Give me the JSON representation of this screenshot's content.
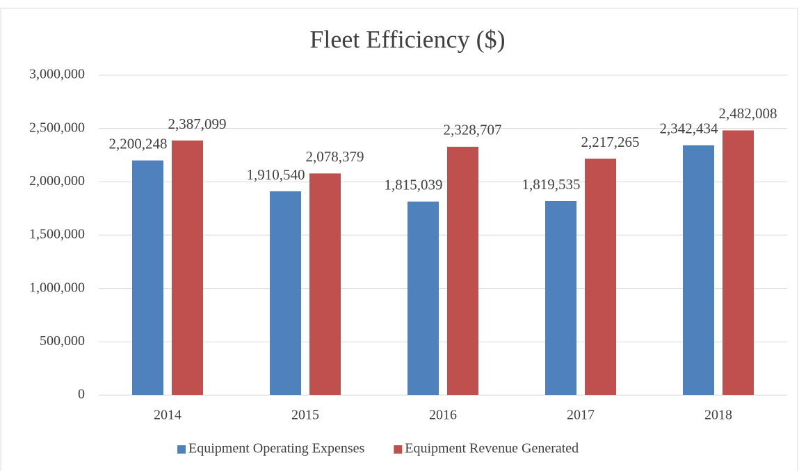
{
  "chart_data": {
    "type": "bar",
    "title": "Fleet Efficiency ($)",
    "categories": [
      "2014",
      "2015",
      "2016",
      "2017",
      "2018"
    ],
    "series": [
      {
        "name": "Equipment Operating Expenses",
        "color": "#4f81bd",
        "values": [
          2200248,
          1910540,
          1815039,
          1819535,
          2342434
        ],
        "value_labels": [
          "2,200,248",
          "1,910,540",
          "1,815,039",
          "1,819,535",
          "2,342,434"
        ]
      },
      {
        "name": "Equipment Revenue Generated",
        "color": "#c0504d",
        "values": [
          2387099,
          2078379,
          2328707,
          2217265,
          2482008
        ],
        "value_labels": [
          "2,387,099",
          "2,078,379",
          "2,328,707",
          "2,217,265",
          "2,482,008"
        ]
      }
    ],
    "ylim": [
      0,
      3000000
    ],
    "yticks": [
      0,
      {
        "value": 500000,
        "label": "500,000"
      },
      {
        "value": 1000000,
        "label": "1,000,000"
      },
      {
        "value": 1500000,
        "label": "1,500,000"
      },
      {
        "value": 2000000,
        "label": "2,000,000"
      },
      {
        "value": 2500000,
        "label": "2,500,000"
      },
      {
        "value": 3000000,
        "label": "3,000,000"
      }
    ],
    "grid": true,
    "legend": "bottom"
  }
}
